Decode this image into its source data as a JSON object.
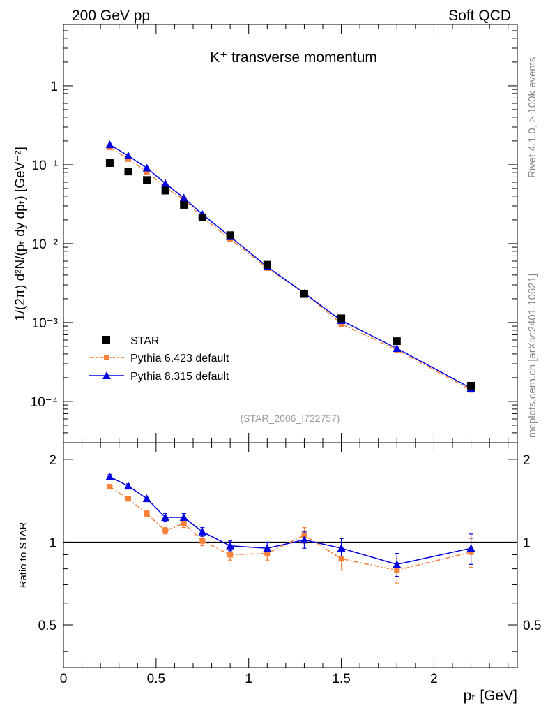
{
  "header": {
    "left": "200 GeV pp",
    "right": "Soft QCD"
  },
  "side_labels": {
    "top": "Rivet 4.1.0, ≥ 100k events",
    "bottom": "mcplots.cern.ch [arXiv:2401.10621]"
  },
  "colors": {
    "star": "#000000",
    "pythia6": "#f5813b",
    "pythia8": "#0000e0",
    "watermark": "#999999",
    "side": "#888888"
  },
  "chart_data": [
    {
      "type": "scatter",
      "panel": "main",
      "title": "K⁺ transverse momentum",
      "analysis_id": "(STAR_2006_I722757)",
      "ylabel": "1/(2π)  d²N/(pₜ dy dpₜ) [GeV⁻²]",
      "yscale": "log",
      "xlim": [
        0,
        2.45
      ],
      "ylim": [
        3e-05,
        6
      ],
      "y_tick_labels": [
        "10⁻⁴",
        "10⁻³",
        "10⁻²",
        "10⁻¹",
        "1"
      ],
      "series": [
        {
          "name": "STAR",
          "marker": "square",
          "x": [
            0.25,
            0.35,
            0.45,
            0.55,
            0.65,
            0.75,
            0.9,
            1.1,
            1.3,
            1.5,
            1.8,
            2.2
          ],
          "y": [
            0.105,
            0.082,
            0.064,
            0.047,
            0.031,
            0.0215,
            0.0128,
            0.0054,
            0.0023,
            0.00113,
            0.00058,
            0.000158
          ]
        },
        {
          "name": "Pythia 6.423 default",
          "marker": "square-small",
          "line": "dashdot",
          "x": [
            0.25,
            0.35,
            0.45,
            0.55,
            0.65,
            0.75,
            0.9,
            1.1,
            1.3,
            1.5,
            1.8,
            2.2
          ],
          "y": [
            0.166,
            0.118,
            0.0815,
            0.0515,
            0.0362,
            0.0216,
            0.0115,
            0.0049,
            0.0024,
            0.00096,
            0.00045,
            0.00014
          ]
        },
        {
          "name": "Pythia 8.315 default",
          "marker": "triangle",
          "line": "solid",
          "x": [
            0.25,
            0.35,
            0.45,
            0.55,
            0.65,
            0.75,
            0.9,
            1.1,
            1.3,
            1.5,
            1.8,
            2.2
          ],
          "y": [
            0.18,
            0.13,
            0.091,
            0.058,
            0.038,
            0.0235,
            0.0123,
            0.0051,
            0.00235,
            0.00106,
            0.00047,
            0.000147
          ]
        }
      ]
    },
    {
      "type": "line",
      "panel": "ratio",
      "ylabel": "Ratio to STAR",
      "xlabel": "pₜ [GeV]",
      "xlim": [
        0,
        2.45
      ],
      "ylim": [
        0.35,
        2.3
      ],
      "x_tick_labels": [
        "0",
        "0.5",
        "1",
        "1.5",
        "2"
      ],
      "y_tick_labels": [
        "0.5",
        "1",
        "2"
      ],
      "reference_line": 1,
      "series": [
        {
          "name": "Pythia 6.423 default",
          "x": [
            0.25,
            0.35,
            0.45,
            0.55,
            0.65,
            0.75,
            0.9,
            1.1,
            1.3,
            1.5,
            1.8,
            2.2
          ],
          "y": [
            1.59,
            1.44,
            1.27,
            1.1,
            1.17,
            1.01,
            0.9,
            0.91,
            1.06,
            0.87,
            0.79,
            0.92
          ],
          "err": [
            0.03,
            0.03,
            0.03,
            0.03,
            0.04,
            0.04,
            0.04,
            0.05,
            0.07,
            0.08,
            0.08,
            0.11
          ]
        },
        {
          "name": "Pythia 8.315 default",
          "x": [
            0.25,
            0.35,
            0.45,
            0.55,
            0.65,
            0.75,
            0.9,
            1.1,
            1.3,
            1.5,
            1.8,
            2.2
          ],
          "y": [
            1.73,
            1.6,
            1.44,
            1.23,
            1.23,
            1.09,
            0.97,
            0.95,
            1.02,
            0.95,
            0.83,
            0.95
          ],
          "err": [
            0.03,
            0.03,
            0.03,
            0.04,
            0.04,
            0.04,
            0.04,
            0.05,
            0.07,
            0.08,
            0.08,
            0.12
          ]
        }
      ]
    }
  ]
}
